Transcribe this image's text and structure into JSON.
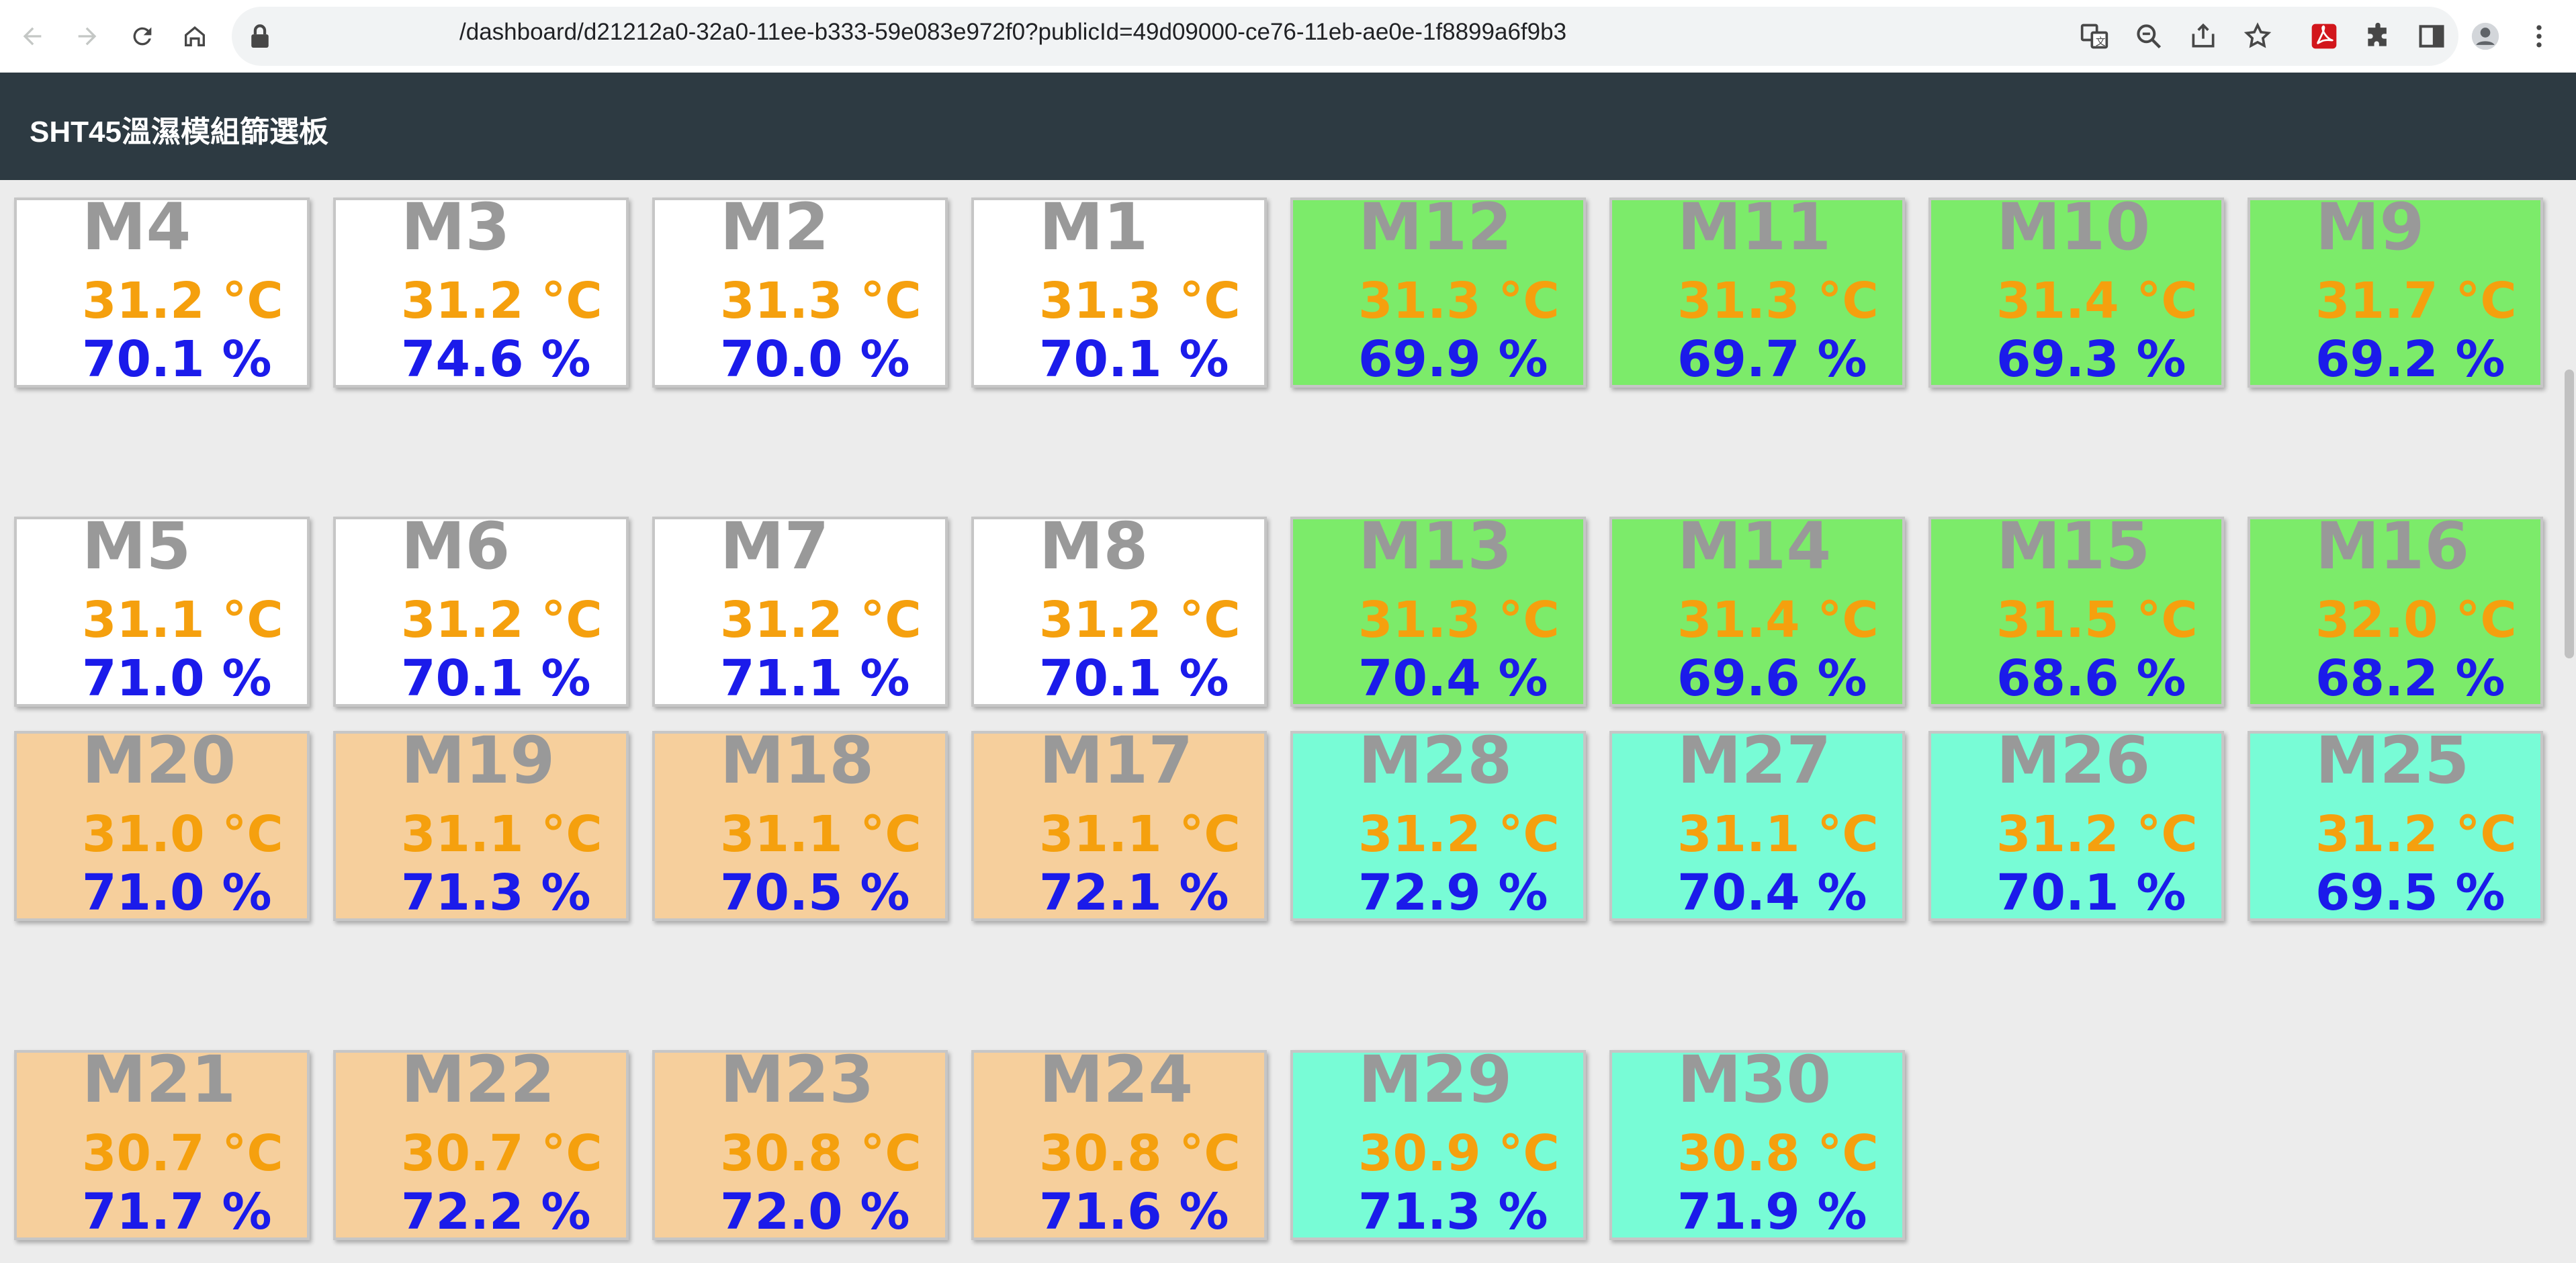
{
  "browser": {
    "url": "/dashboard/d21212a0-32a0-11ee-b333-59e083e972f0?publicId=49d09000-ce76-11eb-ae0e-1f8899a6f9b3",
    "nav_icons": [
      "back-arrow-icon",
      "forward-arrow-icon",
      "reload-icon",
      "home-icon"
    ],
    "tool_icons": [
      "translate-icon",
      "zoom-out-icon",
      "share-icon",
      "star-icon",
      "pdf-extension-icon",
      "puzzle-extensions-icon",
      "side-panel-icon",
      "profile-avatar-icon",
      "kebab-menu-icon"
    ]
  },
  "app": {
    "title": "SHT45溫濕模組篩選板"
  },
  "colors": {
    "white": "#ffffff",
    "green": "#7ceb6a",
    "orange": "#f6cf9c",
    "teal": "#78fcd6",
    "temp": "#f5a00e",
    "humidity": "#1b1bea",
    "name": "#999999"
  },
  "tiles": [
    {
      "name": "M4",
      "temp": "31.2 °C",
      "hum": "70.1 %",
      "color": "white"
    },
    {
      "name": "M3",
      "temp": "31.2 °C",
      "hum": "74.6 %",
      "color": "white"
    },
    {
      "name": "M2",
      "temp": "31.3 °C",
      "hum": "70.0 %",
      "color": "white"
    },
    {
      "name": "M1",
      "temp": "31.3 °C",
      "hum": "70.1 %",
      "color": "white"
    },
    {
      "name": "M12",
      "temp": "31.3 °C",
      "hum": "69.9 %",
      "color": "green"
    },
    {
      "name": "M11",
      "temp": "31.3 °C",
      "hum": "69.7 %",
      "color": "green"
    },
    {
      "name": "M10",
      "temp": "31.4 °C",
      "hum": "69.3 %",
      "color": "green"
    },
    {
      "name": "M9",
      "temp": "31.7 °C",
      "hum": "69.2 %",
      "color": "green"
    },
    {
      "name": "M5",
      "temp": "31.1 °C",
      "hum": "71.0 %",
      "color": "white"
    },
    {
      "name": "M6",
      "temp": "31.2 °C",
      "hum": "70.1 %",
      "color": "white"
    },
    {
      "name": "M7",
      "temp": "31.2 °C",
      "hum": "71.1 %",
      "color": "white"
    },
    {
      "name": "M8",
      "temp": "31.2 °C",
      "hum": "70.1 %",
      "color": "white"
    },
    {
      "name": "M13",
      "temp": "31.3 °C",
      "hum": "70.4 %",
      "color": "green"
    },
    {
      "name": "M14",
      "temp": "31.4 °C",
      "hum": "69.6 %",
      "color": "green"
    },
    {
      "name": "M15",
      "temp": "31.5 °C",
      "hum": "68.6 %",
      "color": "green"
    },
    {
      "name": "M16",
      "temp": "32.0 °C",
      "hum": "68.2 %",
      "color": "green"
    },
    {
      "name": "M20",
      "temp": "31.0 °C",
      "hum": "71.0 %",
      "color": "orange"
    },
    {
      "name": "M19",
      "temp": "31.1 °C",
      "hum": "71.3 %",
      "color": "orange"
    },
    {
      "name": "M18",
      "temp": "31.1 °C",
      "hum": "70.5 %",
      "color": "orange"
    },
    {
      "name": "M17",
      "temp": "31.1 °C",
      "hum": "72.1 %",
      "color": "orange"
    },
    {
      "name": "M28",
      "temp": "31.2 °C",
      "hum": "72.9 %",
      "color": "teal"
    },
    {
      "name": "M27",
      "temp": "31.1 °C",
      "hum": "70.4 %",
      "color": "teal"
    },
    {
      "name": "M26",
      "temp": "31.2 °C",
      "hum": "70.1 %",
      "color": "teal"
    },
    {
      "name": "M25",
      "temp": "31.2 °C",
      "hum": "69.5 %",
      "color": "teal"
    },
    {
      "name": "M21",
      "temp": "30.7 °C",
      "hum": "71.7 %",
      "color": "orange"
    },
    {
      "name": "M22",
      "temp": "30.7 °C",
      "hum": "72.2 %",
      "color": "orange"
    },
    {
      "name": "M23",
      "temp": "30.8 °C",
      "hum": "72.0 %",
      "color": "orange"
    },
    {
      "name": "M24",
      "temp": "30.8 °C",
      "hum": "71.6 %",
      "color": "orange"
    },
    {
      "name": "M29",
      "temp": "30.9 °C",
      "hum": "71.3 %",
      "color": "teal"
    },
    {
      "name": "M30",
      "temp": "30.8 °C",
      "hum": "71.9 %",
      "color": "teal"
    }
  ]
}
